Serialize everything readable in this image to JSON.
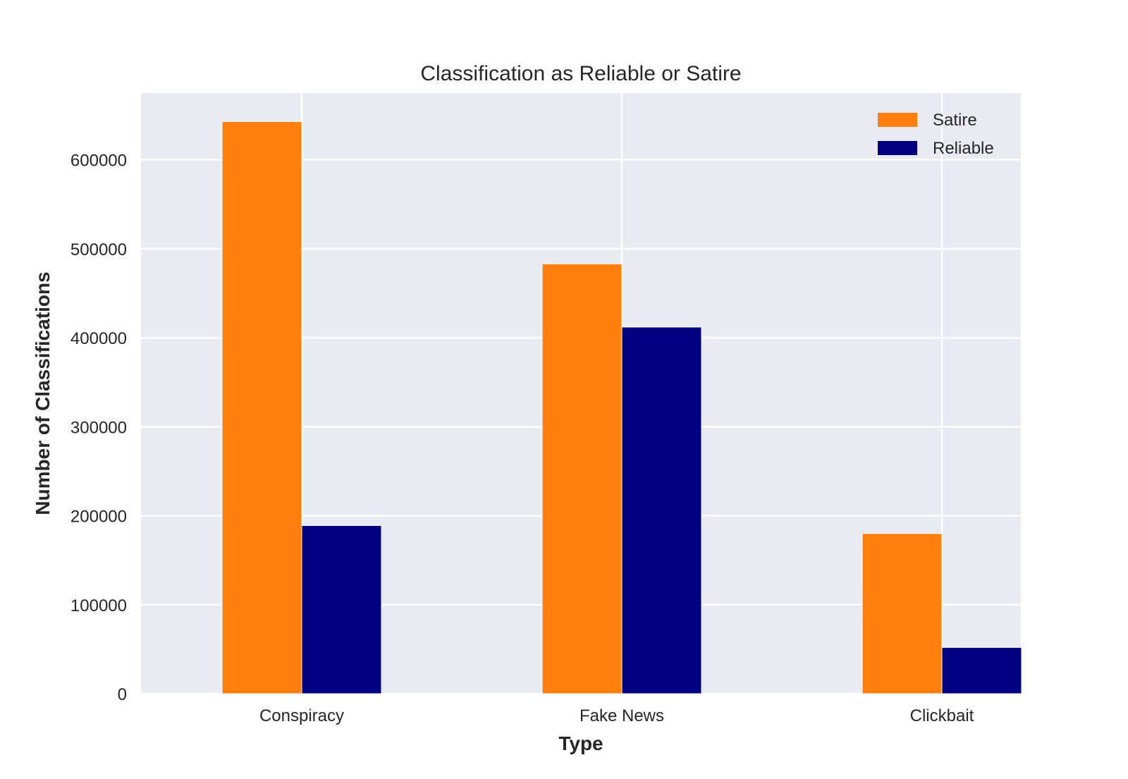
{
  "chart_data": {
    "type": "bar",
    "title": "Classification as Reliable or Satire",
    "xlabel": "Type",
    "ylabel": "Number of Classifications",
    "categories": [
      "Conspiracy",
      "Fake News",
      "Clickbait"
    ],
    "series": [
      {
        "name": "Satire",
        "values": [
          643000,
          483000,
          180000
        ],
        "color": "#ff7f0e"
      },
      {
        "name": "Reliable",
        "values": [
          189000,
          412000,
          52000
        ],
        "color": "#000080"
      }
    ],
    "ylim": [
      0,
      675000
    ],
    "yticks": [
      0,
      100000,
      200000,
      300000,
      400000,
      500000,
      600000
    ],
    "ytick_labels": [
      "0",
      "100000",
      "200000",
      "300000",
      "400000",
      "500000",
      "600000"
    ],
    "grid": true,
    "legend_position": "top-right",
    "background_color": "#eaeaf2",
    "grid_color": "#ffffff"
  }
}
